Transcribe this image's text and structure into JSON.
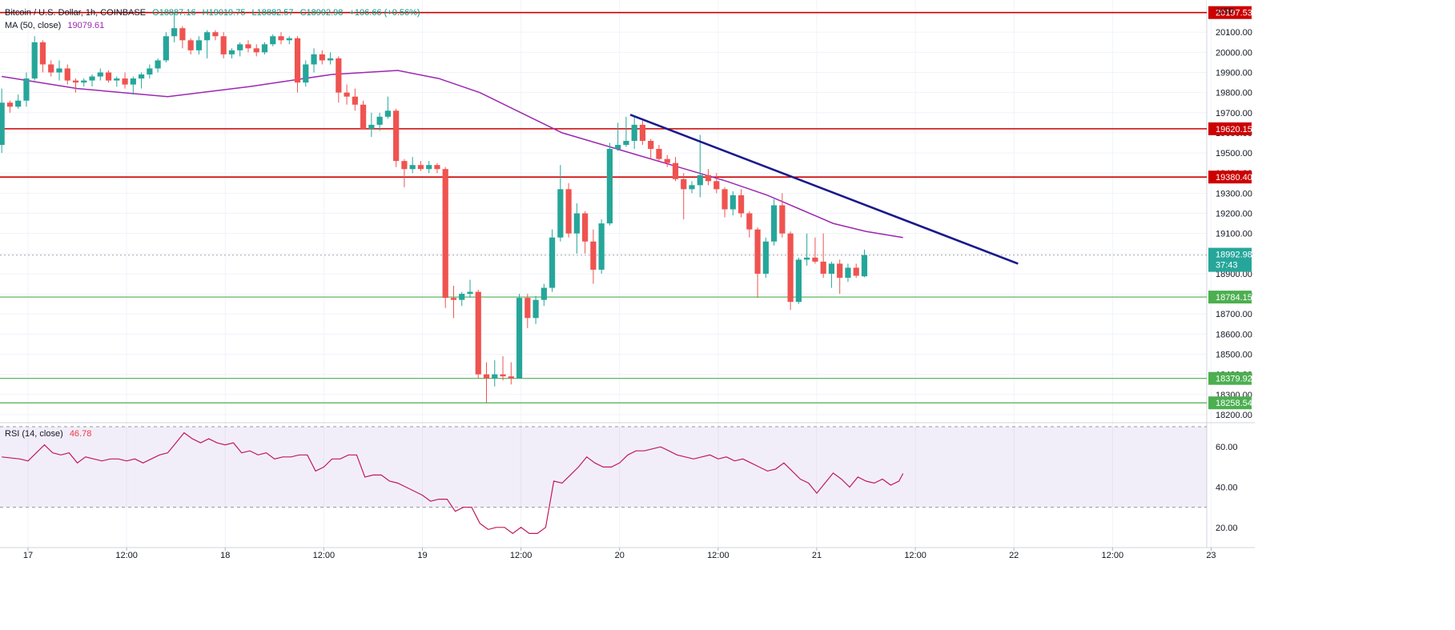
{
  "header": {
    "symbol": "Bitcoin / U.S. Dollar, 1h, COINBASE",
    "open": "O18887.16",
    "high": "H19019.75",
    "low": "L18882.57",
    "close": "C18992.98",
    "change": "+106.66 (+0.56%)",
    "ma_label": "MA (50, close)",
    "ma_value": "19079.61",
    "rsi_label": "RSI (14, close)",
    "rsi_value": "46.78",
    "currency": "USD"
  },
  "colors": {
    "up": "#26a69a",
    "down": "#ef5350",
    "ma": "#9c27b0",
    "resistance": "#cc0000",
    "support": "#4caf50",
    "trendline": "#1a1a8c",
    "rsi_line": "#c2185b",
    "rsi_band": "#7e57c2",
    "grid": "#f0f3fa"
  },
  "chart_data": [
    {
      "type": "candlestick",
      "interval": "1h",
      "ylim": [
        18160,
        20260
      ],
      "y_ticks": [
        18200,
        18300,
        18400,
        18500,
        18600,
        18700,
        18800,
        18900,
        19000,
        19100,
        19200,
        19300,
        19400,
        19500,
        19600,
        19700,
        19800,
        19900,
        20000,
        20100
      ],
      "y_tick_labels": [
        "18200.00",
        "18300.00",
        "18400.00",
        "18500.00",
        "18600.00",
        "18700.00",
        "18800.00",
        "18900.00",
        "19000.00",
        "19100.00",
        "19200.00",
        "19300.00",
        "19400.00",
        "19500.00",
        "19600.00",
        "19700.00",
        "19800.00",
        "19900.00",
        "20000.00",
        "20100.00"
      ],
      "x_labels": [
        "17",
        "12:00",
        "18",
        "12:00",
        "19",
        "12:00",
        "20",
        "12:00",
        "21",
        "12:00",
        "22",
        "12:00",
        "23"
      ],
      "x_label_hours": [
        0,
        12,
        24,
        36,
        48,
        60,
        72,
        84,
        96,
        108,
        120,
        132,
        144
      ],
      "start_hour": -3.2,
      "candles": [
        [
          19540,
          19820,
          19500,
          19750
        ],
        [
          19750,
          19760,
          19700,
          19730
        ],
        [
          19730,
          19790,
          19720,
          19760
        ],
        [
          19760,
          19900,
          19730,
          19870
        ],
        [
          19870,
          20080,
          19860,
          20050
        ],
        [
          20050,
          20060,
          19900,
          19940
        ],
        [
          19940,
          19960,
          19880,
          19900
        ],
        [
          19900,
          19960,
          19860,
          19920
        ],
        [
          19920,
          19940,
          19840,
          19860
        ],
        [
          19860,
          19870,
          19800,
          19850
        ],
        [
          19850,
          19870,
          19830,
          19860
        ],
        [
          19860,
          19890,
          19830,
          19880
        ],
        [
          19880,
          19920,
          19860,
          19900
        ],
        [
          19900,
          19910,
          19850,
          19860
        ],
        [
          19860,
          19880,
          19830,
          19870
        ],
        [
          19870,
          19900,
          19820,
          19840
        ],
        [
          19840,
          19880,
          19790,
          19870
        ],
        [
          19870,
          19900,
          19820,
          19890
        ],
        [
          19890,
          19940,
          19870,
          19920
        ],
        [
          19920,
          19970,
          19900,
          19960
        ],
        [
          19960,
          20100,
          19950,
          20080
        ],
        [
          20080,
          20200,
          20050,
          20120
        ],
        [
          20120,
          20130,
          20020,
          20060
        ],
        [
          20060,
          20070,
          19990,
          20010
        ],
        [
          20010,
          20080,
          19990,
          20060
        ],
        [
          20060,
          20110,
          19970,
          20100
        ],
        [
          20100,
          20110,
          20060,
          20080
        ],
        [
          20080,
          20100,
          19970,
          19990
        ],
        [
          19990,
          20020,
          19970,
          20010
        ],
        [
          20010,
          20050,
          19980,
          20040
        ],
        [
          20040,
          20060,
          20000,
          20020
        ],
        [
          20020,
          20040,
          19980,
          20000
        ],
        [
          20000,
          20050,
          19990,
          20040
        ],
        [
          20040,
          20090,
          20030,
          20080
        ],
        [
          20080,
          20100,
          20040,
          20060
        ],
        [
          20060,
          20080,
          20040,
          20070
        ],
        [
          20070,
          20080,
          19800,
          19850
        ],
        [
          19850,
          19960,
          19830,
          19940
        ],
        [
          19940,
          20020,
          19900,
          19990
        ],
        [
          19990,
          20010,
          19940,
          19960
        ],
        [
          19960,
          20000,
          19940,
          19970
        ],
        [
          19970,
          19980,
          19750,
          19800
        ],
        [
          19800,
          19840,
          19740,
          19780
        ],
        [
          19780,
          19820,
          19710,
          19740
        ],
        [
          19740,
          19760,
          19620,
          19620
        ],
        [
          19620,
          19700,
          19580,
          19640
        ],
        [
          19640,
          19700,
          19610,
          19680
        ],
        [
          19680,
          19780,
          19670,
          19710
        ],
        [
          19710,
          19720,
          19430,
          19460
        ],
        [
          19460,
          19470,
          19330,
          19420
        ],
        [
          19420,
          19480,
          19400,
          19440
        ],
        [
          19440,
          19460,
          19410,
          19420
        ],
        [
          19420,
          19460,
          19400,
          19440
        ],
        [
          19440,
          19450,
          19400,
          19420
        ],
        [
          19420,
          19430,
          18730,
          18780
        ],
        [
          18780,
          18840,
          18680,
          18770
        ],
        [
          18770,
          18810,
          18740,
          18800
        ],
        [
          18800,
          18870,
          18780,
          18810
        ],
        [
          18810,
          18820,
          18380,
          18400
        ],
        [
          18400,
          18460,
          18260,
          18380
        ],
        [
          18380,
          18470,
          18340,
          18400
        ],
        [
          18400,
          18490,
          18370,
          18390
        ],
        [
          18390,
          18460,
          18350,
          18380
        ],
        [
          18380,
          18800,
          18380,
          18780
        ],
        [
          18780,
          18800,
          18630,
          18680
        ],
        [
          18680,
          18790,
          18650,
          18770
        ],
        [
          18770,
          18850,
          18740,
          18830
        ],
        [
          18830,
          19120,
          18810,
          19080
        ],
        [
          19080,
          19440,
          19060,
          19320
        ],
        [
          19320,
          19350,
          19080,
          19100
        ],
        [
          19100,
          19250,
          19000,
          19200
        ],
        [
          19200,
          19210,
          19000,
          19060
        ],
        [
          19060,
          19120,
          18850,
          18920
        ],
        [
          18920,
          19170,
          18900,
          19150
        ],
        [
          19150,
          19550,
          19140,
          19520
        ],
        [
          19520,
          19650,
          19510,
          19540
        ],
        [
          19540,
          19680,
          19530,
          19560
        ],
        [
          19560,
          19680,
          19520,
          19640
        ],
        [
          19640,
          19660,
          19540,
          19560
        ],
        [
          19560,
          19570,
          19470,
          19520
        ],
        [
          19520,
          19540,
          19460,
          19470
        ],
        [
          19470,
          19490,
          19430,
          19450
        ],
        [
          19450,
          19480,
          19360,
          19370
        ],
        [
          19370,
          19400,
          19170,
          19320
        ],
        [
          19320,
          19360,
          19300,
          19340
        ],
        [
          19340,
          19590,
          19280,
          19390
        ],
        [
          19390,
          19420,
          19340,
          19360
        ],
        [
          19360,
          19400,
          19300,
          19320
        ],
        [
          19320,
          19330,
          19180,
          19220
        ],
        [
          19220,
          19310,
          19190,
          19290
        ],
        [
          19290,
          19320,
          19180,
          19200
        ],
        [
          19200,
          19210,
          19080,
          19120
        ],
        [
          19120,
          19130,
          18780,
          18900
        ],
        [
          18900,
          19080,
          18880,
          19060
        ],
        [
          19060,
          19270,
          19040,
          19240
        ],
        [
          19240,
          19300,
          19080,
          19100
        ],
        [
          19100,
          19110,
          18720,
          18760
        ],
        [
          18760,
          18980,
          18750,
          18970
        ],
        [
          18970,
          19100,
          18940,
          18980
        ],
        [
          18980,
          19080,
          18950,
          18960
        ],
        [
          18960,
          19100,
          18880,
          18900
        ],
        [
          18900,
          18960,
          18830,
          18950
        ],
        [
          18950,
          18970,
          18800,
          18880
        ],
        [
          18880,
          18950,
          18860,
          18930
        ],
        [
          18930,
          18950,
          18880,
          18890
        ],
        [
          18887.16,
          19019.75,
          18882.57,
          18992.98
        ]
      ],
      "ma50": [
        [
          -3.2,
          19880
        ],
        [
          6,
          19820
        ],
        [
          17,
          19780
        ],
        [
          27,
          19830
        ],
        [
          37,
          19890
        ],
        [
          45,
          19910
        ],
        [
          50,
          19870
        ],
        [
          55,
          19800
        ],
        [
          60,
          19700
        ],
        [
          65,
          19600
        ],
        [
          70,
          19540
        ],
        [
          75,
          19480
        ],
        [
          80,
          19420
        ],
        [
          85,
          19360
        ],
        [
          90,
          19290
        ],
        [
          94,
          19220
        ],
        [
          98,
          19150
        ],
        [
          102,
          19110
        ],
        [
          106.5,
          19080
        ]
      ],
      "levels": [
        {
          "label": "20197.53",
          "value": 20197.53,
          "kind": "resistance"
        },
        {
          "label": "19620.15",
          "value": 19620.15,
          "kind": "resistance"
        },
        {
          "label": "19380.40",
          "value": 19380.4,
          "kind": "resistance"
        },
        {
          "label": "18784.15",
          "value": 18784.15,
          "kind": "support"
        },
        {
          "label": "18379.92",
          "value": 18379.92,
          "kind": "support"
        },
        {
          "label": "18258.54",
          "value": 18258.54,
          "kind": "support"
        }
      ],
      "last_price": {
        "label": "18992.98",
        "countdown": "37:43",
        "value": 18992.98
      },
      "trendline": [
        [
          73.3,
          19690
        ],
        [
          120.5,
          18950
        ]
      ]
    },
    {
      "type": "line",
      "name": "RSI (14, close)",
      "ylim": [
        10,
        72
      ],
      "y_ticks": [
        20,
        40,
        60
      ],
      "y_tick_labels": [
        "20.00",
        "40.00",
        "60.00"
      ],
      "bands": [
        30,
        70
      ],
      "values": [
        [
          -3.2,
          55
        ],
        [
          -1,
          54
        ],
        [
          0,
          53
        ],
        [
          1,
          57
        ],
        [
          2,
          61
        ],
        [
          3,
          57
        ],
        [
          4,
          56
        ],
        [
          5,
          57
        ],
        [
          6,
          52
        ],
        [
          7,
          55
        ],
        [
          8,
          54
        ],
        [
          9,
          53
        ],
        [
          10,
          54
        ],
        [
          11,
          54
        ],
        [
          12,
          53
        ],
        [
          13,
          54
        ],
        [
          14,
          52
        ],
        [
          15,
          54
        ],
        [
          16,
          56
        ],
        [
          17,
          57
        ],
        [
          18,
          62
        ],
        [
          19,
          67
        ],
        [
          20,
          64
        ],
        [
          21,
          62
        ],
        [
          22,
          64
        ],
        [
          23,
          62
        ],
        [
          24,
          61
        ],
        [
          25,
          62
        ],
        [
          26,
          57
        ],
        [
          27,
          58
        ],
        [
          28,
          56
        ],
        [
          29,
          57
        ],
        [
          30,
          54
        ],
        [
          31,
          55
        ],
        [
          32,
          55
        ],
        [
          33,
          56
        ],
        [
          34,
          56
        ],
        [
          35,
          48
        ],
        [
          36,
          50
        ],
        [
          37,
          54
        ],
        [
          38,
          54
        ],
        [
          39,
          56
        ],
        [
          40,
          56
        ],
        [
          41,
          45
        ],
        [
          42,
          46
        ],
        [
          43,
          46
        ],
        [
          44,
          43
        ],
        [
          45,
          42
        ],
        [
          46,
          40
        ],
        [
          47,
          38
        ],
        [
          48,
          36
        ],
        [
          49,
          33
        ],
        [
          50,
          34
        ],
        [
          51,
          34
        ],
        [
          52,
          28
        ],
        [
          53,
          30
        ],
        [
          54,
          30
        ],
        [
          55,
          22
        ],
        [
          56,
          19
        ],
        [
          57,
          20
        ],
        [
          58,
          20
        ],
        [
          59,
          17
        ],
        [
          60,
          20
        ],
        [
          61,
          17
        ],
        [
          62,
          17
        ],
        [
          63,
          20
        ],
        [
          64,
          43
        ],
        [
          65,
          42
        ],
        [
          66,
          46
        ],
        [
          67,
          50
        ],
        [
          68,
          55
        ],
        [
          69,
          52
        ],
        [
          70,
          50
        ],
        [
          71,
          50
        ],
        [
          72,
          52
        ],
        [
          73,
          56
        ],
        [
          74,
          58
        ],
        [
          75,
          58
        ],
        [
          76,
          59
        ],
        [
          77,
          60
        ],
        [
          78,
          58
        ],
        [
          79,
          56
        ],
        [
          80,
          55
        ],
        [
          81,
          54
        ],
        [
          82,
          55
        ],
        [
          83,
          56
        ],
        [
          84,
          54
        ],
        [
          85,
          55
        ],
        [
          86,
          53
        ],
        [
          87,
          54
        ],
        [
          88,
          52
        ],
        [
          89,
          50
        ],
        [
          90,
          48
        ],
        [
          91,
          49
        ],
        [
          92,
          52
        ],
        [
          93,
          48
        ],
        [
          94,
          44
        ],
        [
          95,
          42
        ],
        [
          96,
          37
        ],
        [
          97,
          42
        ],
        [
          98,
          47
        ],
        [
          99,
          44
        ],
        [
          100,
          40
        ],
        [
          101,
          45
        ],
        [
          102,
          43
        ],
        [
          103,
          42
        ],
        [
          104,
          44
        ],
        [
          105,
          41
        ],
        [
          106,
          43
        ],
        [
          106.5,
          46.78
        ]
      ]
    }
  ]
}
